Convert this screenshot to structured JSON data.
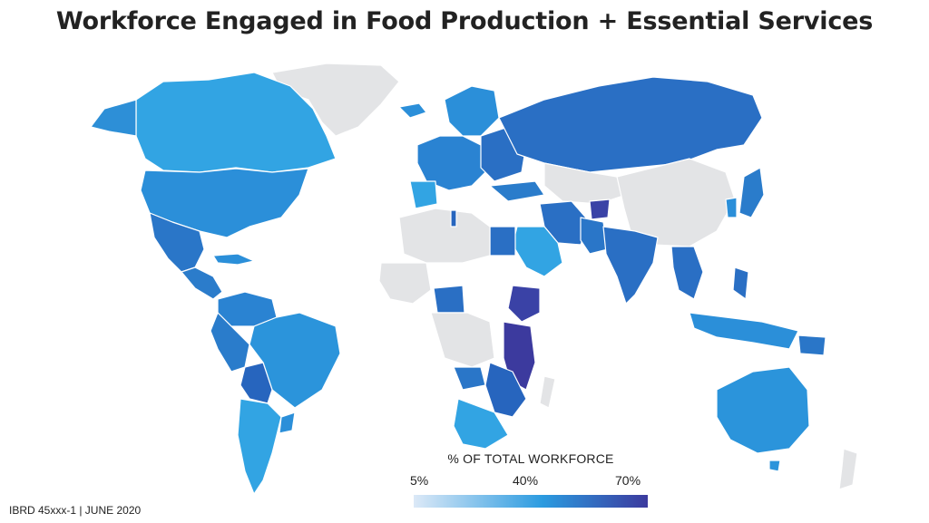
{
  "title": "Workforce Engaged in Food Production + Essential Services",
  "legend": {
    "title": "% OF TOTAL WORKFORCE",
    "ticks": [
      "5%",
      "40%",
      "70%"
    ],
    "colors": {
      "low": "#dce9f7",
      "mid": "#2b9be0",
      "high": "#3c3a9e",
      "no_data": "#e3e4e6",
      "border": "#ffffff"
    }
  },
  "credit": "IBRD 45xxx-1 | JUNE 2020"
}
